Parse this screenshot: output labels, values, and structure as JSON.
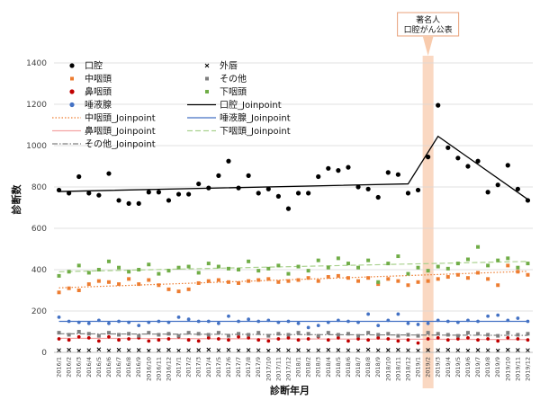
{
  "chart_data": {
    "type": "scatter",
    "xlabel": "診断年月",
    "ylabel": "診断数",
    "ylim": [
      0,
      1400
    ],
    "yticks": [
      0,
      200,
      400,
      600,
      800,
      1000,
      1200,
      1400
    ],
    "grid": "horizontal",
    "legend_position": "top",
    "categories": [
      "2016/1",
      "2016/2",
      "2016/3",
      "2016/4",
      "2016/5",
      "2016/6",
      "2016/7",
      "2016/8",
      "2016/9",
      "2016/10",
      "2016/11",
      "2016/12",
      "2017/1",
      "2017/2",
      "2017/3",
      "2017/4",
      "2017/5",
      "2017/6",
      "2017/7",
      "2017/8",
      "2017/9",
      "2017/10",
      "2017/11",
      "2017/12",
      "2018/1",
      "2018/2",
      "2018/3",
      "2018/4",
      "2018/5",
      "2018/6",
      "2018/7",
      "2018/8",
      "2018/9",
      "2018/10",
      "2018/11",
      "2018/12",
      "2019/1",
      "2019/2",
      "2019/3",
      "2019/4",
      "2019/5",
      "2019/6",
      "2019/7",
      "2019/8",
      "2019/9",
      "2019/10",
      "2019/11",
      "2019/12"
    ],
    "x_tick_labels": [
      "2016/1",
      "2016/3",
      "2016/5",
      "2016/7",
      "2016/9",
      "2016/11",
      "2017/1",
      "2017/3",
      "2017/5",
      "2017/7",
      "2017/9",
      "2017/11",
      "2018/1",
      "2018/3",
      "2018/5",
      "2018/7",
      "2018/9",
      "2018/11",
      "2019/1",
      "2019/3",
      "2019/5",
      "2019/7",
      "2019/9",
      "2019/11"
    ],
    "x_tick_labels_2": [
      "2016/2",
      "2016/4",
      "2016/6",
      "2016/8",
      "2016/10",
      "2016/12",
      "2017/2",
      "2017/4",
      "2017/6",
      "2017/8",
      "2017/10",
      "2017/12",
      "2018/2",
      "2018/4",
      "2018/6",
      "2018/8",
      "2018/10",
      "2018/12",
      "2019/2",
      "2019/4",
      "2019/6",
      "2019/8",
      "2019/10",
      "2019/12"
    ],
    "highlight": {
      "category": "2019/2",
      "label_lines": [
        "著名人",
        "口腔がん公表"
      ],
      "color": "#f8cbad"
    },
    "series": [
      {
        "name": "口腔",
        "marker": "dot",
        "color": "#000000",
        "values": [
          785,
          770,
          850,
          770,
          760,
          865,
          735,
          720,
          720,
          775,
          775,
          735,
          765,
          765,
          815,
          795,
          855,
          925,
          795,
          855,
          770,
          790,
          755,
          695,
          770,
          770,
          850,
          890,
          880,
          895,
          800,
          790,
          750,
          870,
          860,
          770,
          785,
          945,
          1195,
          990,
          940,
          900,
          925,
          775,
          810,
          905,
          790,
          735
        ]
      },
      {
        "name": "外唇",
        "marker": "x",
        "color": "#000000",
        "values": [
          10,
          12,
          8,
          10,
          14,
          9,
          12,
          10,
          11,
          8,
          10,
          12,
          9,
          10,
          11,
          13,
          10,
          12,
          9,
          11,
          10,
          8,
          12,
          10,
          11,
          9,
          10,
          12,
          11,
          10,
          9,
          13,
          10,
          11,
          12,
          10,
          9,
          11,
          10,
          12,
          10,
          9,
          11,
          10,
          8,
          12,
          11,
          10
        ]
      },
      {
        "name": "中咽頭",
        "marker": "square",
        "color": "#ed7d31",
        "values": [
          290,
          310,
          300,
          330,
          345,
          340,
          330,
          355,
          330,
          350,
          325,
          305,
          295,
          305,
          335,
          345,
          350,
          340,
          335,
          345,
          350,
          355,
          340,
          345,
          350,
          360,
          345,
          365,
          370,
          360,
          345,
          360,
          330,
          355,
          345,
          325,
          340,
          345,
          355,
          365,
          375,
          360,
          385,
          355,
          325,
          420,
          390,
          375
        ]
      },
      {
        "name": "唾液腺",
        "marker": "dot",
        "color": "#4472c4",
        "values": [
          170,
          150,
          145,
          140,
          155,
          140,
          150,
          145,
          130,
          145,
          150,
          145,
          170,
          160,
          150,
          150,
          140,
          175,
          150,
          160,
          150,
          155,
          145,
          150,
          140,
          120,
          130,
          145,
          155,
          150,
          145,
          185,
          130,
          155,
          185,
          140,
          135,
          140,
          155,
          150,
          145,
          155,
          150,
          175,
          180,
          155,
          165,
          150
        ]
      },
      {
        "name": "下咽頭",
        "marker": "square",
        "color": "#70ad47",
        "values": [
          370,
          390,
          420,
          385,
          400,
          440,
          410,
          390,
          400,
          425,
          380,
          395,
          410,
          415,
          385,
          430,
          415,
          405,
          400,
          440,
          395,
          405,
          420,
          380,
          415,
          395,
          445,
          410,
          455,
          430,
          410,
          445,
          340,
          430,
          465,
          380,
          410,
          395,
          415,
          405,
          430,
          450,
          510,
          420,
          445,
          455,
          410,
          430
        ]
      },
      {
        "name": "鼻咽頭",
        "marker": "dot",
        "color": "#c00000",
        "values": [
          65,
          60,
          75,
          70,
          55,
          75,
          60,
          65,
          70,
          55,
          60,
          65,
          75,
          60,
          55,
          70,
          65,
          60,
          75,
          70,
          60,
          55,
          65,
          70,
          60,
          65,
          75,
          60,
          70,
          55,
          65,
          60,
          70,
          65,
          55,
          60,
          45,
          65,
          70,
          60,
          65,
          70,
          60,
          65,
          55,
          70,
          65,
          60
        ]
      },
      {
        "name": "その他",
        "marker": "square",
        "color": "#7f7f7f",
        "values": [
          95,
          85,
          100,
          90,
          80,
          95,
          85,
          90,
          80,
          95,
          85,
          90,
          80,
          95,
          90,
          85,
          95,
          80,
          90,
          85,
          95,
          80,
          90,
          85,
          95,
          90,
          80,
          95,
          85,
          90,
          80,
          95,
          85,
          90,
          80,
          85,
          80,
          95,
          90,
          85,
          80,
          95,
          90,
          85,
          80,
          95,
          85,
          90
        ]
      }
    ],
    "joinpoint_series": [
      {
        "name": "中咽頭_Joinpoint",
        "style": "dotted",
        "color": "#ed7d31",
        "start": 312,
        "end": 392
      },
      {
        "name": "唾液腺_Joinpoint",
        "style": "solid",
        "color": "#4472c4",
        "start": 150,
        "end": 150
      },
      {
        "name": "鼻咽頭_Joinpoint",
        "style": "solid",
        "color": "#f4a3a3",
        "start": 68,
        "end": 62
      },
      {
        "name": "下咽頭_Joinpoint",
        "style": "dashed",
        "color": "#a9d18e",
        "start": 390,
        "end": 440
      },
      {
        "name": "その他_Joinpoint",
        "style": "dashdot",
        "color": "#808080",
        "start": 90,
        "end": 82
      },
      {
        "name": "口腔_Joinpoint",
        "style": "solid",
        "color": "#000000",
        "points": [
          {
            "x": "2016/1",
            "y": 778
          },
          {
            "x": "2018/12",
            "y": 815
          },
          {
            "x": "2019/3",
            "y": 1045
          },
          {
            "x": "2019/12",
            "y": 740
          }
        ]
      }
    ],
    "legend": [
      {
        "label": "口腔",
        "kind": "dot",
        "color": "#000000"
      },
      {
        "label": "外唇",
        "kind": "x",
        "color": "#000000"
      },
      {
        "label": "中咽頭",
        "kind": "square",
        "color": "#ed7d31"
      },
      {
        "label": "唾液腺",
        "kind": "dot",
        "color": "#4472c4"
      },
      {
        "label": "鼻咽頭",
        "kind": "dot",
        "color": "#c00000"
      },
      {
        "label": "下咽頭",
        "kind": "square",
        "color": "#70ad47"
      },
      {
        "label": "その他",
        "kind": "square",
        "color": "#7f7f7f"
      },
      {
        "label": "口腔_Joinpoint",
        "kind": "solid",
        "color": "#000000"
      },
      {
        "label": "中咽頭_Joinpoint",
        "kind": "dotted",
        "color": "#ed7d31"
      },
      {
        "label": "唾液腺_Joinpoint",
        "kind": "solid",
        "color": "#4472c4"
      },
      {
        "label": "鼻咽頭_Joinpoint",
        "kind": "solid",
        "color": "#f4a3a3"
      },
      {
        "label": "下咽頭_Joinpoint",
        "kind": "dashed",
        "color": "#a9d18e"
      },
      {
        "label": "その他_Joinpoint",
        "kind": "dashdot",
        "color": "#808080"
      }
    ]
  }
}
